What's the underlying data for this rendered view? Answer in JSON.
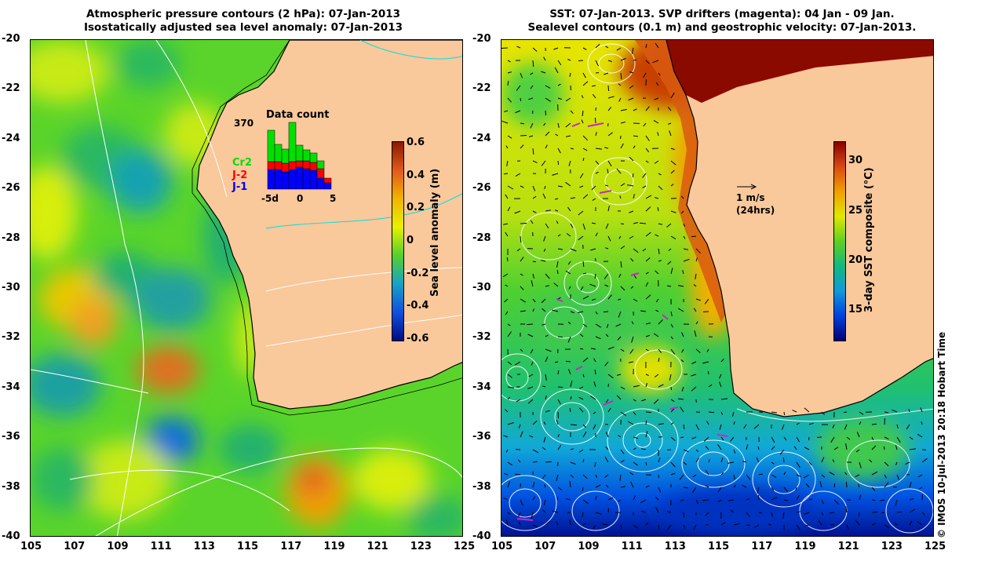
{
  "left_panel": {
    "title_line1": "Atmospheric pressure contours (2 hPa): 07-Jan-2013",
    "title_line2": "Isostatically adjusted sea level anomaly: 07-Jan-2013",
    "colorbar": {
      "label": "Sea level anomaly (m)",
      "ticks": [
        "0.6",
        "0.4",
        "0.2",
        "0",
        "-0.2",
        "-0.4",
        "-0.6"
      ],
      "colors": [
        "#8b1a00",
        "#e05a1a",
        "#f2b400",
        "#e8f000",
        "#56d02b",
        "#16a2c8",
        "#1050e0",
        "#000c80"
      ]
    },
    "data_count": {
      "title": "Data count",
      "max_label": "370",
      "x_ticks": [
        "-5d",
        "0",
        "5"
      ],
      "missions": [
        {
          "name": "Cr2",
          "color": "#00e000"
        },
        {
          "name": "J-2",
          "color": "#ff0000"
        },
        {
          "name": "J-1",
          "color": "#0000ff"
        }
      ]
    }
  },
  "right_panel": {
    "title_line1": "SST: 07-Jan-2013. SVP drifters (magenta): 04 Jan - 09 Jan.",
    "title_line2": "Sealevel contours (0.1 m) and geostrophic velocity: 07-Jan-2013.",
    "colorbar": {
      "label": "3-day SST composite (°C)",
      "ticks": [
        "30",
        "25",
        "20",
        "15"
      ],
      "colors": [
        "#8b0000",
        "#d84a10",
        "#f0a000",
        "#e0e800",
        "#60d020",
        "#12b880",
        "#109ad8",
        "#0040e0",
        "#000070"
      ]
    },
    "velocity_legend": {
      "line1": "1 m/s",
      "line2": "(24hrs)"
    }
  },
  "axes": {
    "lat_ticks": [
      "-20",
      "-22",
      "-24",
      "-26",
      "-28",
      "-30",
      "-32",
      "-34",
      "-36",
      "-38",
      "-40"
    ],
    "lon_ticks": [
      "105",
      "107",
      "109",
      "111",
      "113",
      "115",
      "117",
      "119",
      "121",
      "123",
      "125"
    ]
  },
  "credit": "© IMOS 10-Jul-2013 20:18 Hobart Time",
  "colors": {
    "land": "#f9c89b",
    "coast": "#000000",
    "contours": "#ffffff",
    "cyan_contour": "#00e0e0"
  }
}
